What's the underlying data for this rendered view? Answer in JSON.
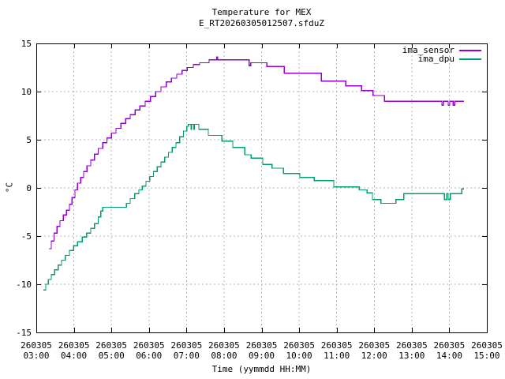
{
  "chart_data": {
    "type": "line",
    "style": "steps",
    "title": "Temperature for MEX",
    "subtitle": "E_RT20260305012507.sfduZ",
    "xlabel": "Time (yymmdd HH:MM)",
    "ylabel": "°C",
    "xlim_hours": [
      3,
      15
    ],
    "ylim": [
      -15,
      15
    ],
    "grid": "on",
    "legend_position": "top-right-inside",
    "background_color": "#ffffff",
    "axis_color": "#000000",
    "grid_color": "#b4b4b4",
    "x_ticks": [
      {
        "hour": 3,
        "date": "260305",
        "time": "03:00"
      },
      {
        "hour": 4,
        "date": "260305",
        "time": "04:00"
      },
      {
        "hour": 5,
        "date": "260305",
        "time": "05:00"
      },
      {
        "hour": 6,
        "date": "260305",
        "time": "06:00"
      },
      {
        "hour": 7,
        "date": "260305",
        "time": "07:00"
      },
      {
        "hour": 8,
        "date": "260305",
        "time": "08:00"
      },
      {
        "hour": 9,
        "date": "260305",
        "time": "09:00"
      },
      {
        "hour": 10,
        "date": "260305",
        "time": "10:00"
      },
      {
        "hour": 11,
        "date": "260305",
        "time": "11:00"
      },
      {
        "hour": 12,
        "date": "260305",
        "time": "12:00"
      },
      {
        "hour": 13,
        "date": "260305",
        "time": "13:00"
      },
      {
        "hour": 14,
        "date": "260305",
        "time": "14:00"
      },
      {
        "hour": 15,
        "date": "260305",
        "time": "15:00"
      }
    ],
    "y_ticks": [
      {
        "value": 15,
        "label": "15"
      },
      {
        "value": 10,
        "label": "10"
      },
      {
        "value": 5,
        "label": "5"
      },
      {
        "value": 0,
        "label": "0"
      },
      {
        "value": -5,
        "label": "-5"
      },
      {
        "value": -10,
        "label": "-10"
      },
      {
        "value": -15,
        "label": "-15"
      }
    ],
    "series": [
      {
        "name": "ima_sensor",
        "color": "#9400d3",
        "points": [
          [
            3.34,
            -6.3
          ],
          [
            3.4,
            -5.5
          ],
          [
            3.47,
            -4.7
          ],
          [
            3.55,
            -4.0
          ],
          [
            3.63,
            -3.4
          ],
          [
            3.72,
            -2.8
          ],
          [
            3.8,
            -2.3
          ],
          [
            3.88,
            -1.7
          ],
          [
            3.95,
            -1.0
          ],
          [
            4.03,
            -0.2
          ],
          [
            4.1,
            0.5
          ],
          [
            4.18,
            1.1
          ],
          [
            4.26,
            1.7
          ],
          [
            4.35,
            2.3
          ],
          [
            4.45,
            2.9
          ],
          [
            4.55,
            3.5
          ],
          [
            4.65,
            4.1
          ],
          [
            4.77,
            4.7
          ],
          [
            4.88,
            5.2
          ],
          [
            5.0,
            5.7
          ],
          [
            5.12,
            6.2
          ],
          [
            5.25,
            6.7
          ],
          [
            5.38,
            7.2
          ],
          [
            5.5,
            7.6
          ],
          [
            5.63,
            8.1
          ],
          [
            5.76,
            8.5
          ],
          [
            5.9,
            9.0
          ],
          [
            6.04,
            9.5
          ],
          [
            6.18,
            10.0
          ],
          [
            6.32,
            10.5
          ],
          [
            6.46,
            11.0
          ],
          [
            6.6,
            11.4
          ],
          [
            6.74,
            11.8
          ],
          [
            6.88,
            12.2
          ],
          [
            7.02,
            12.5
          ],
          [
            7.18,
            12.8
          ],
          [
            7.35,
            13.0
          ],
          [
            7.6,
            13.3
          ],
          [
            7.8,
            13.6
          ],
          [
            7.83,
            13.3
          ],
          [
            8.67,
            12.7
          ],
          [
            8.71,
            13.0
          ],
          [
            9.14,
            12.6
          ],
          [
            9.6,
            11.9
          ],
          [
            10.59,
            11.1
          ],
          [
            11.24,
            10.6
          ],
          [
            11.66,
            10.1
          ],
          [
            11.97,
            9.6
          ],
          [
            12.27,
            9.0
          ],
          [
            13.8,
            8.6
          ],
          [
            13.84,
            9.0
          ],
          [
            13.97,
            8.6
          ],
          [
            14.01,
            9.0
          ],
          [
            14.1,
            8.6
          ],
          [
            14.14,
            9.0
          ],
          [
            14.39,
            9.0
          ]
        ]
      },
      {
        "name": "ima_dpu",
        "color": "#009e73",
        "points": [
          [
            3.19,
            -10.6
          ],
          [
            3.25,
            -10.0
          ],
          [
            3.32,
            -9.5
          ],
          [
            3.4,
            -9.0
          ],
          [
            3.49,
            -8.5
          ],
          [
            3.58,
            -8.0
          ],
          [
            3.67,
            -7.5
          ],
          [
            3.77,
            -7.0
          ],
          [
            3.88,
            -6.5
          ],
          [
            3.99,
            -6.0
          ],
          [
            4.1,
            -5.6
          ],
          [
            4.22,
            -5.1
          ],
          [
            4.34,
            -4.7
          ],
          [
            4.45,
            -4.2
          ],
          [
            4.55,
            -3.7
          ],
          [
            4.65,
            -3.0
          ],
          [
            4.72,
            -2.4
          ],
          [
            4.77,
            -2.0
          ],
          [
            5.4,
            -1.6
          ],
          [
            5.5,
            -1.1
          ],
          [
            5.62,
            -0.6
          ],
          [
            5.73,
            -0.2
          ],
          [
            5.82,
            0.2
          ],
          [
            5.92,
            0.7
          ],
          [
            6.02,
            1.2
          ],
          [
            6.12,
            1.7
          ],
          [
            6.22,
            2.2
          ],
          [
            6.32,
            2.7
          ],
          [
            6.42,
            3.2
          ],
          [
            6.52,
            3.7
          ],
          [
            6.62,
            4.2
          ],
          [
            6.72,
            4.7
          ],
          [
            6.82,
            5.3
          ],
          [
            6.92,
            5.9
          ],
          [
            7.01,
            6.4
          ],
          [
            7.05,
            6.6
          ],
          [
            7.12,
            6.1
          ],
          [
            7.14,
            6.6
          ],
          [
            7.19,
            6.1
          ],
          [
            7.21,
            6.6
          ],
          [
            7.33,
            6.1
          ],
          [
            7.58,
            5.45
          ],
          [
            7.94,
            4.85
          ],
          [
            8.23,
            4.2
          ],
          [
            8.55,
            3.45
          ],
          [
            8.72,
            3.1
          ],
          [
            9.03,
            2.45
          ],
          [
            9.28,
            2.05
          ],
          [
            9.58,
            1.5
          ],
          [
            10.02,
            1.1
          ],
          [
            10.4,
            0.75
          ],
          [
            10.92,
            0.1
          ],
          [
            11.6,
            -0.2
          ],
          [
            11.81,
            -0.5
          ],
          [
            11.95,
            -1.2
          ],
          [
            12.18,
            -1.6
          ],
          [
            12.58,
            -1.2
          ],
          [
            12.79,
            -0.6
          ],
          [
            13.87,
            -1.2
          ],
          [
            13.93,
            -0.6
          ],
          [
            13.97,
            -1.2
          ],
          [
            14.03,
            -0.6
          ],
          [
            14.33,
            -0.1
          ],
          [
            14.39,
            -0.1
          ]
        ]
      }
    ]
  }
}
